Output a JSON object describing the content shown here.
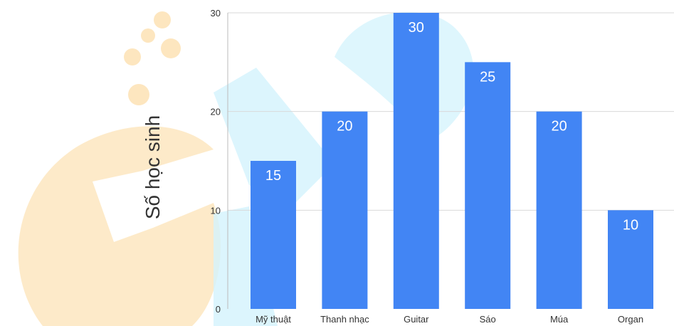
{
  "chart_data": {
    "type": "bar",
    "title": "",
    "xlabel": "",
    "ylabel": "Số học sinh",
    "categories": [
      "Mỹ thuật",
      "Thanh nhạc",
      "Guitar",
      "Sáo",
      "Múa",
      "Organ"
    ],
    "values": [
      15,
      20,
      30,
      25,
      20,
      10
    ],
    "ylim": [
      0,
      30
    ],
    "yticks": [
      0,
      10,
      20,
      30
    ],
    "grid": true,
    "legend": "none",
    "data_labels": true,
    "colors": {
      "bar": "#4285f4",
      "grid": "#d9d9d9",
      "watermark_orange": "#fde3b4",
      "watermark_cyan": "#c9f0fb"
    }
  }
}
